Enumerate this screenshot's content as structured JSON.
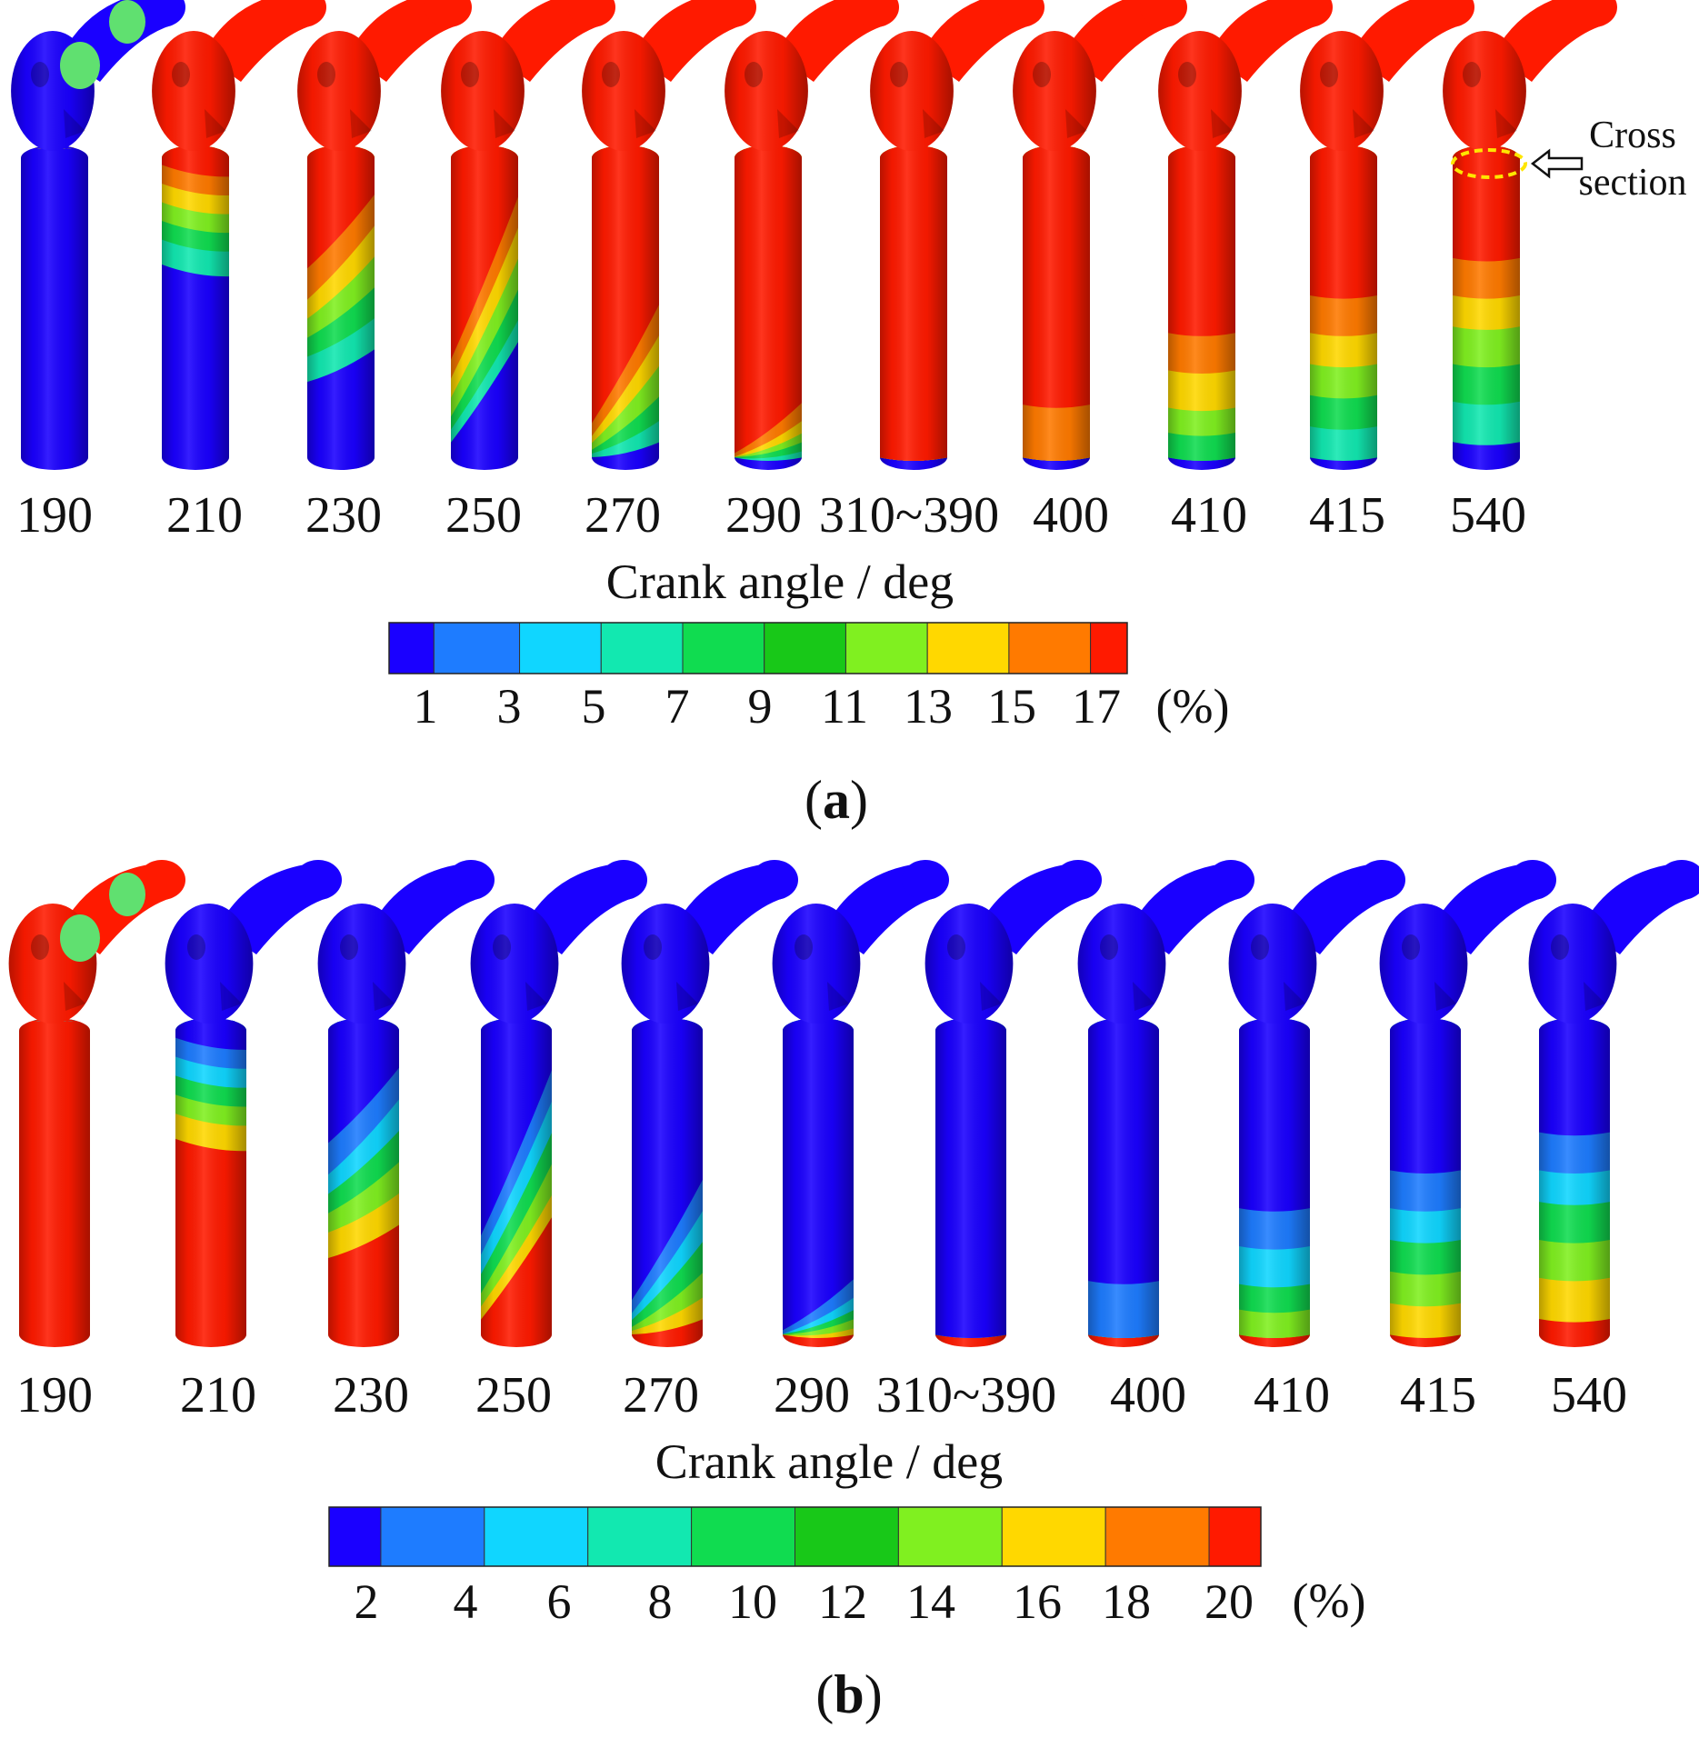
{
  "panels": [
    {
      "id": "a",
      "caption": "a",
      "axis_label": "Crank angle / deg",
      "angles": [
        "190",
        "210",
        "230",
        "250",
        "270",
        "290",
        "310~390",
        "400",
        "410",
        "415",
        "540"
      ],
      "bands": [
        {
          "front": [
            0,
            0,
            0,
            0,
            0,
            0
          ],
          "back": [
            0,
            0,
            0,
            0,
            0,
            0
          ],
          "top": "blue"
        },
        {
          "front": [
            0.06,
            0.12,
            0.18,
            0.24,
            0.3,
            0.38
          ],
          "back": [
            0.1,
            0.16,
            0.22,
            0.28,
            0.34,
            0.42
          ],
          "top": "red"
        },
        {
          "front": [
            0.4,
            0.5,
            0.56,
            0.62,
            0.68,
            0.76
          ],
          "back": [
            0.15,
            0.25,
            0.35,
            0.45,
            0.55,
            0.65
          ],
          "top": "red"
        },
        {
          "front": [
            0.7,
            0.76,
            0.82,
            0.88,
            0.92,
            0.96
          ],
          "back": [
            0.15,
            0.25,
            0.35,
            0.45,
            0.55,
            0.62
          ],
          "top": "red"
        },
        {
          "front": [
            0.9,
            0.94,
            0.96,
            0.98,
            0.99,
            1.0
          ],
          "back": [
            0.5,
            0.6,
            0.7,
            0.8,
            0.88,
            0.95
          ],
          "top": "red"
        },
        {
          "front": [
            0.99,
            1.0,
            1.0,
            1.0,
            1.0,
            1.0
          ],
          "back": [
            0.82,
            0.88,
            0.92,
            0.95,
            0.98,
            1.0
          ],
          "top": "red"
        },
        {
          "front": [
            1,
            1,
            1,
            1,
            1,
            1
          ],
          "back": [
            1,
            1,
            1,
            1,
            1,
            1
          ],
          "top": "red"
        },
        {
          "front": [
            0.83,
            1,
            1,
            1,
            1,
            1
          ],
          "back": [
            0.83,
            1,
            1,
            1,
            1,
            1
          ],
          "top": "red"
        },
        {
          "front": [
            0.6,
            0.72,
            0.84,
            0.92,
            1,
            1
          ],
          "back": [
            0.6,
            0.72,
            0.84,
            0.92,
            1,
            1
          ],
          "top": "red"
        },
        {
          "front": [
            0.48,
            0.6,
            0.7,
            0.8,
            0.9,
            1
          ],
          "back": [
            0.48,
            0.6,
            0.7,
            0.8,
            0.9,
            1
          ],
          "top": "red"
        },
        {
          "front": [
            0.36,
            0.48,
            0.58,
            0.7,
            0.82,
            0.95
          ],
          "back": [
            0.36,
            0.48,
            0.58,
            0.7,
            0.82,
            0.95
          ],
          "top": "red"
        }
      ],
      "annotation": {
        "line1": "Cross",
        "line2": "section"
      },
      "colorbar": {
        "colors": [
          "#1a00ff",
          "#1e7cff",
          "#10d6ff",
          "#12e8b0",
          "#10dc50",
          "#18c818",
          "#80f020",
          "#ffd800",
          "#ff7a00",
          "#ff1a00"
        ],
        "tick_labels": [
          "1",
          "3",
          "5",
          "7",
          "9",
          "11",
          "13",
          "15",
          "17"
        ],
        "unit": "(%)"
      }
    },
    {
      "id": "b",
      "caption": "b",
      "axis_label": "Crank angle / deg",
      "angles": [
        "190",
        "210",
        "230",
        "250",
        "270",
        "290",
        "310~390",
        "400",
        "410",
        "415",
        "540"
      ],
      "bands": [
        {
          "front": [
            0,
            0,
            0,
            0,
            0,
            0
          ],
          "back": [
            0,
            0,
            0,
            0,
            0,
            0
          ],
          "top": "red"
        },
        {
          "front": [
            0.06,
            0.12,
            0.18,
            0.24,
            0.3,
            0.38
          ],
          "back": [
            0.1,
            0.16,
            0.22,
            0.28,
            0.34,
            0.42
          ],
          "top": "blue"
        },
        {
          "front": [
            0.4,
            0.5,
            0.56,
            0.62,
            0.68,
            0.76
          ],
          "back": [
            0.15,
            0.25,
            0.35,
            0.45,
            0.55,
            0.65
          ],
          "top": "blue"
        },
        {
          "front": [
            0.7,
            0.76,
            0.82,
            0.88,
            0.92,
            0.96
          ],
          "back": [
            0.15,
            0.25,
            0.35,
            0.45,
            0.55,
            0.62
          ],
          "top": "blue"
        },
        {
          "front": [
            0.9,
            0.94,
            0.96,
            0.98,
            0.99,
            1.0
          ],
          "back": [
            0.5,
            0.6,
            0.7,
            0.8,
            0.88,
            0.95
          ],
          "top": "blue"
        },
        {
          "front": [
            0.99,
            1.0,
            1.0,
            1.0,
            1.0,
            1.0
          ],
          "back": [
            0.82,
            0.88,
            0.92,
            0.95,
            0.98,
            1.0
          ],
          "top": "blue"
        },
        {
          "front": [
            1,
            1,
            1,
            1,
            1,
            1
          ],
          "back": [
            1,
            1,
            1,
            1,
            1,
            1
          ],
          "top": "blue"
        },
        {
          "front": [
            0.83,
            1,
            1,
            1,
            1,
            1
          ],
          "back": [
            0.83,
            1,
            1,
            1,
            1,
            1
          ],
          "top": "blue"
        },
        {
          "front": [
            0.6,
            0.72,
            0.84,
            0.92,
            1,
            1
          ],
          "back": [
            0.6,
            0.72,
            0.84,
            0.92,
            1,
            1
          ],
          "top": "blue"
        },
        {
          "front": [
            0.48,
            0.6,
            0.7,
            0.8,
            0.9,
            1
          ],
          "back": [
            0.48,
            0.6,
            0.7,
            0.8,
            0.9,
            1
          ],
          "top": "blue"
        },
        {
          "front": [
            0.36,
            0.48,
            0.58,
            0.7,
            0.82,
            0.95
          ],
          "back": [
            0.36,
            0.48,
            0.58,
            0.7,
            0.82,
            0.95
          ],
          "top": "blue"
        }
      ],
      "colorbar": {
        "colors": [
          "#1a00ff",
          "#1e7cff",
          "#10d6ff",
          "#12e8b0",
          "#10dc50",
          "#18c818",
          "#80f020",
          "#ffd800",
          "#ff7a00",
          "#ff1a00"
        ],
        "tick_labels": [
          "2",
          "4",
          "6",
          "8",
          "10",
          "12",
          "14",
          "16",
          "18",
          "20"
        ],
        "unit": "(%)"
      }
    }
  ],
  "gradient_red_to_blue": [
    "#ff1a00",
    "#ff7a00",
    "#ffd800",
    "#80f020",
    "#10dc50",
    "#12e8b0",
    "#1e7cff"
  ],
  "gradient_blue_to_red": [
    "#1a00ff",
    "#1e7cff",
    "#10d6ff",
    "#10dc50",
    "#80f020",
    "#ffd800",
    "#ff7a00"
  ]
}
